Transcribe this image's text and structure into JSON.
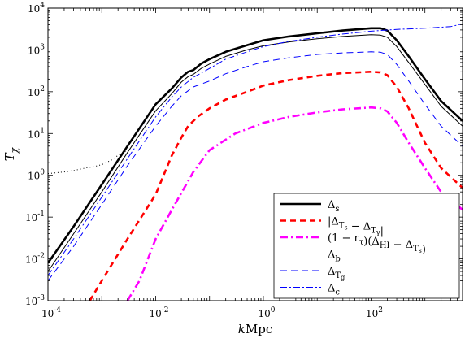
{
  "chart_data": {
    "type": "line",
    "title": "",
    "xlabel": "kMpc",
    "ylabel": "T_χ",
    "xscale": "log",
    "yscale": "log",
    "xlim": [
      0.0001,
      5000
    ],
    "ylim": [
      0.001,
      10000
    ],
    "grid": false,
    "legend_position": "bottom-right",
    "x_ticks": [
      {
        "value": 0.0001,
        "base": "10",
        "exp": "-4"
      },
      {
        "value": 0.01,
        "base": "10",
        "exp": "-2"
      },
      {
        "value": 1,
        "base": "10",
        "exp": "0"
      },
      {
        "value": 100,
        "base": "10",
        "exp": "2"
      }
    ],
    "y_ticks": [
      {
        "value": 0.001,
        "base": "10",
        "exp": "-3"
      },
      {
        "value": 0.01,
        "base": "10",
        "exp": "-2"
      },
      {
        "value": 0.1,
        "base": "10",
        "exp": "-1"
      },
      {
        "value": 1,
        "base": "10",
        "exp": "0"
      },
      {
        "value": 10,
        "base": "10",
        "exp": "1"
      },
      {
        "value": 100,
        "base": "10",
        "exp": "2"
      },
      {
        "value": 1000,
        "base": "10",
        "exp": "3"
      },
      {
        "value": 10000,
        "base": "10",
        "exp": "4"
      }
    ],
    "series": [
      {
        "name": "Δ_s",
        "color": "#000000",
        "width": 2.6,
        "dash": "",
        "x": [
          0.0001,
          0.0003,
          0.001,
          0.003,
          0.01,
          0.02,
          0.03,
          0.04,
          0.05,
          0.07,
          0.1,
          0.2,
          0.5,
          1,
          3,
          10,
          30,
          100,
          150,
          200,
          300,
          500,
          1000,
          2000,
          5000
        ],
        "y": [
          0.008,
          0.06,
          0.6,
          5,
          50,
          120,
          220,
          300,
          330,
          470,
          600,
          900,
          1300,
          1700,
          2100,
          2500,
          2900,
          3300,
          3300,
          2900,
          1700,
          700,
          200,
          60,
          20
        ]
      },
      {
        "name": "|Δ_{T_s} − Δ_{T_γ}|",
        "color": "#ff0000",
        "width": 2.6,
        "dash": "7,5",
        "x": [
          0.0006,
          0.001,
          0.003,
          0.01,
          0.02,
          0.03,
          0.04,
          0.06,
          0.1,
          0.2,
          0.5,
          1,
          3,
          10,
          30,
          100,
          150,
          200,
          300,
          500,
          1000,
          2000,
          5000
        ],
        "y": [
          0.001,
          0.003,
          0.03,
          0.35,
          3,
          8,
          15,
          25,
          40,
          65,
          100,
          140,
          190,
          240,
          280,
          300,
          290,
          250,
          130,
          40,
          6,
          1.5,
          0.5
        ]
      },
      {
        "name": "(1 − r_τ)(Δ_{HI} − Δ_{T_s})",
        "color": "#ff00ff",
        "width": 2.6,
        "dash": "9,4,2,4",
        "x": [
          0.003,
          0.005,
          0.01,
          0.02,
          0.05,
          0.1,
          0.3,
          1,
          3,
          10,
          30,
          100,
          150,
          200,
          300,
          500,
          1000,
          2000,
          5000
        ],
        "y": [
          0.001,
          0.003,
          0.03,
          0.15,
          1.2,
          4,
          10,
          18,
          25,
          32,
          38,
          42,
          40,
          34,
          18,
          6,
          1.5,
          0.4,
          0.15
        ]
      },
      {
        "name": "Δ_b",
        "color": "#000000",
        "width": 1.0,
        "dash": "",
        "x": [
          0.0001,
          0.0003,
          0.001,
          0.003,
          0.01,
          0.02,
          0.03,
          0.04,
          0.05,
          0.07,
          0.1,
          0.2,
          0.5,
          1,
          3,
          10,
          30,
          100,
          150,
          200,
          300,
          500,
          1000,
          2000,
          5000
        ],
        "y": [
          0.005,
          0.04,
          0.4,
          3.5,
          35,
          90,
          170,
          230,
          260,
          360,
          460,
          700,
          1000,
          1250,
          1550,
          1850,
          2100,
          2300,
          2250,
          2000,
          1200,
          500,
          150,
          45,
          15
        ]
      },
      {
        "name": "Δ_{T_g}",
        "color": "#0000ff",
        "width": 1.0,
        "dash": "8,5",
        "x": [
          0.0001,
          0.0003,
          0.001,
          0.003,
          0.01,
          0.02,
          0.03,
          0.05,
          0.1,
          0.2,
          0.5,
          1,
          3,
          10,
          30,
          100,
          150,
          200,
          300,
          500,
          1000,
          2000,
          5000
        ],
        "y": [
          0.003,
          0.02,
          0.2,
          1.7,
          15,
          45,
          80,
          130,
          180,
          270,
          400,
          520,
          650,
          780,
          850,
          900,
          880,
          780,
          450,
          180,
          50,
          15,
          5
        ]
      },
      {
        "name": "Δ_c",
        "color": "#0000ff",
        "width": 1.0,
        "dash": "8,3,2,3",
        "x": [
          0.0001,
          0.0003,
          0.001,
          0.003,
          0.01,
          0.02,
          0.03,
          0.05,
          0.1,
          0.2,
          0.5,
          1,
          3,
          10,
          30,
          100,
          300,
          1000,
          3000,
          5000
        ],
        "y": [
          0.004,
          0.03,
          0.3,
          2.5,
          25,
          75,
          130,
          220,
          360,
          600,
          900,
          1200,
          1600,
          2000,
          2400,
          2800,
          3100,
          3300,
          3600,
          4200
        ]
      },
      {
        "name": "",
        "color": "#000000",
        "width": 1.0,
        "dash": "1,3",
        "x": [
          0.0001,
          0.0002,
          0.0003,
          0.0005,
          0.0007,
          0.001,
          0.0015,
          0.002,
          0.003
        ],
        "y": [
          1.1,
          1.2,
          1.3,
          1.5,
          1.6,
          1.8,
          2.3,
          3,
          4
        ]
      }
    ]
  }
}
